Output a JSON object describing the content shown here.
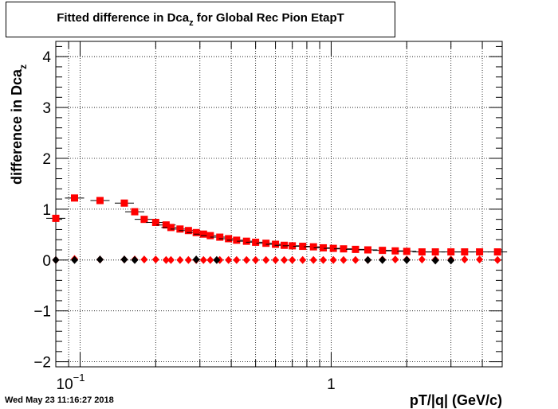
{
  "chart_data": {
    "type": "scatter",
    "title_main": "Fitted difference in Dca",
    "title_sub": "z",
    "title_rest": " for Global Rec Pion EtapT",
    "xlabel": "pT/|q| (GeV/c)",
    "ylabel_main": "difference in Dca",
    "ylabel_sub": "z",
    "x_scale": "log",
    "xlim": [
      0.08,
      4.8
    ],
    "ylim": [
      -2.1,
      4.3
    ],
    "grid": true,
    "x_tick_labels": [
      {
        "value": 0.1,
        "base": "10",
        "exp": "−1"
      },
      {
        "value": 1,
        "base": "1",
        "exp": ""
      }
    ],
    "y_ticks": [
      -2,
      -1,
      0,
      1,
      2,
      3,
      4
    ],
    "y_tick_labels": [
      "−2",
      "−1",
      "0",
      "1",
      "2",
      "3",
      "4"
    ],
    "series": [
      {
        "marker": "square",
        "color": "#ff0000",
        "points": [
          [
            0.08,
            0.82
          ],
          [
            0.095,
            1.22
          ],
          [
            0.12,
            1.17
          ],
          [
            0.15,
            1.12
          ],
          [
            0.165,
            0.95
          ],
          [
            0.18,
            0.8
          ],
          [
            0.2,
            0.74
          ],
          [
            0.22,
            0.69
          ],
          [
            0.23,
            0.64
          ],
          [
            0.25,
            0.61
          ],
          [
            0.27,
            0.58
          ],
          [
            0.29,
            0.54
          ],
          [
            0.31,
            0.51
          ],
          [
            0.33,
            0.48
          ],
          [
            0.36,
            0.45
          ],
          [
            0.39,
            0.42
          ],
          [
            0.42,
            0.39
          ],
          [
            0.46,
            0.37
          ],
          [
            0.5,
            0.35
          ],
          [
            0.55,
            0.33
          ],
          [
            0.6,
            0.31
          ],
          [
            0.65,
            0.29
          ],
          [
            0.7,
            0.28
          ],
          [
            0.77,
            0.27
          ],
          [
            0.85,
            0.26
          ],
          [
            0.93,
            0.24
          ],
          [
            1.02,
            0.23
          ],
          [
            1.12,
            0.22
          ],
          [
            1.25,
            0.21
          ],
          [
            1.4,
            0.2
          ],
          [
            1.6,
            0.19
          ],
          [
            1.8,
            0.18
          ],
          [
            2.0,
            0.17
          ],
          [
            2.3,
            0.16
          ],
          [
            2.6,
            0.16
          ],
          [
            3.0,
            0.16
          ],
          [
            3.4,
            0.16
          ],
          [
            3.9,
            0.16
          ],
          [
            4.6,
            0.16
          ]
        ]
      },
      {
        "marker": "diamond",
        "color": "#ff0000",
        "points": [
          [
            0.08,
            0.0
          ],
          [
            0.095,
            0.02
          ],
          [
            0.12,
            0.01
          ],
          [
            0.15,
            0.01
          ],
          [
            0.165,
            0.01
          ],
          [
            0.18,
            0.01
          ],
          [
            0.2,
            0.01
          ],
          [
            0.22,
            0.0
          ],
          [
            0.23,
            0.0
          ],
          [
            0.25,
            0.0
          ],
          [
            0.27,
            0.0
          ],
          [
            0.29,
            0.0
          ],
          [
            0.31,
            0.0
          ],
          [
            0.33,
            0.0
          ],
          [
            0.36,
            0.0
          ],
          [
            0.39,
            0.0
          ],
          [
            0.42,
            0.0
          ],
          [
            0.46,
            0.0
          ],
          [
            0.5,
            0.0
          ],
          [
            0.55,
            0.0
          ],
          [
            0.6,
            0.0
          ],
          [
            0.65,
            0.0
          ],
          [
            0.7,
            0.0
          ],
          [
            0.77,
            0.0
          ],
          [
            0.85,
            0.0
          ],
          [
            0.93,
            0.0
          ],
          [
            1.02,
            0.0
          ],
          [
            1.12,
            0.0
          ],
          [
            1.25,
            0.0
          ],
          [
            1.4,
            0.0
          ],
          [
            1.6,
            0.01
          ],
          [
            1.8,
            0.01
          ],
          [
            2.0,
            0.01
          ],
          [
            2.3,
            0.01
          ],
          [
            2.6,
            0.01
          ],
          [
            3.0,
            0.01
          ],
          [
            3.4,
            0.01
          ],
          [
            3.9,
            0.01
          ],
          [
            4.6,
            0.0
          ]
        ]
      },
      {
        "marker": "diamond",
        "color": "#000000",
        "points": [
          [
            0.08,
            0.0
          ],
          [
            0.095,
            0.0
          ],
          [
            0.12,
            0.01
          ],
          [
            0.15,
            0.01
          ],
          [
            0.165,
            0.0
          ],
          [
            0.29,
            0.01
          ],
          [
            0.35,
            0.0
          ],
          [
            1.4,
            0.0
          ],
          [
            1.6,
            0.0
          ],
          [
            2.0,
            0.0
          ],
          [
            2.6,
            -0.01
          ],
          [
            3.0,
            -0.01
          ]
        ]
      }
    ]
  },
  "timestamp": "Wed May 23 11:16:27 2018",
  "colors": {
    "frame": "#000000",
    "marker_red": "#ff0000",
    "marker_black": "#000000"
  }
}
